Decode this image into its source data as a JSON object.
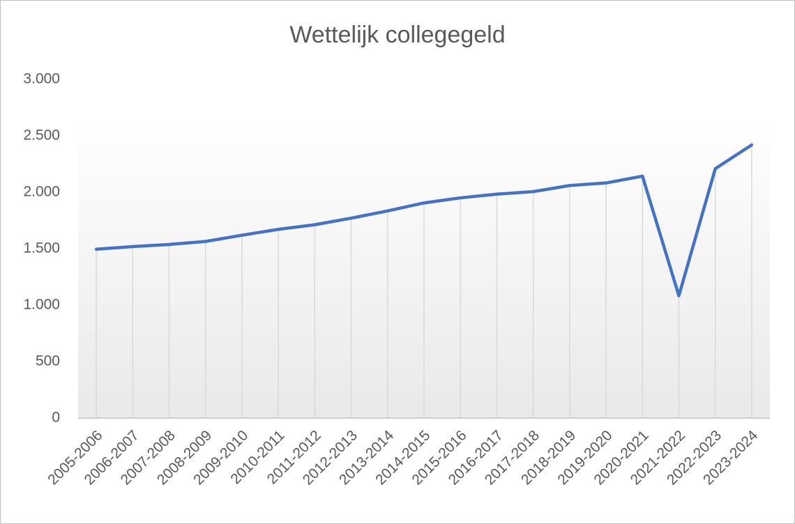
{
  "chart_data": {
    "type": "line",
    "title": "Wettelijk collegegeld",
    "categories": [
      "2005-2006",
      "2006-2007",
      "2007-2008",
      "2008-2009",
      "2009-2010",
      "2010-2011",
      "2011-2012",
      "2012-2013",
      "2013-2014",
      "2014-2015",
      "2015-2016",
      "2016-2017",
      "2017-2018",
      "2018-2019",
      "2019-2020",
      "2020-2021",
      "2021-2022",
      "2022-2023",
      "2023-2024"
    ],
    "values": [
      1496,
      1519,
      1538,
      1565,
      1620,
      1672,
      1713,
      1771,
      1835,
      1906,
      1951,
      1984,
      2006,
      2060,
      2083,
      2143,
      1084,
      2209,
      2420
    ],
    "color": "#4472c4",
    "ylim": [
      0,
      3000
    ],
    "yticks": [
      0,
      500,
      {
        "value": 1000,
        "label": "1.000"
      },
      {
        "value": 1500,
        "label": "1.500"
      },
      {
        "value": 2000,
        "label": "2.000"
      },
      {
        "value": 2500,
        "label": "2.500"
      },
      {
        "value": 3000,
        "label": "3.000"
      }
    ],
    "drop_lines": true
  }
}
